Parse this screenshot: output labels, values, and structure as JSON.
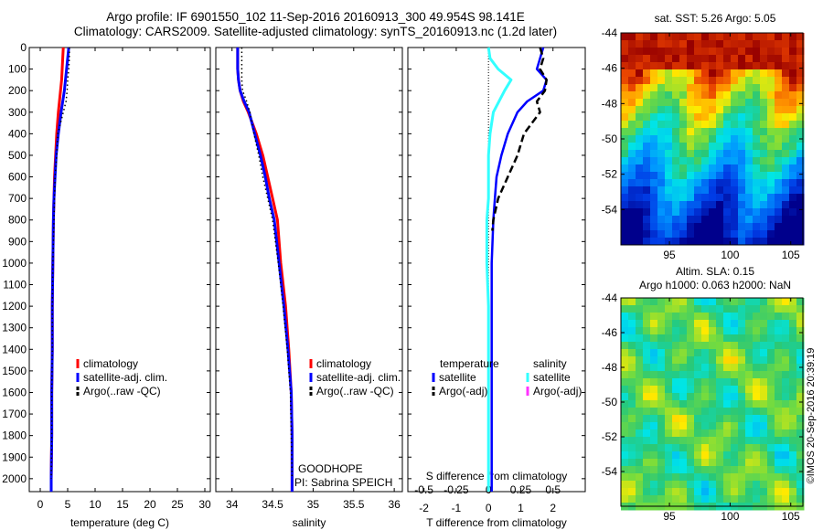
{
  "title_line1": "Argo profile: IF 6901550_102 11-Sep-2016 20160913_300 49.954S 98.141E",
  "title_line2": "Climatology: CARS2009. Satellite-adjusted climatology: synTS_20160913.nc (1.2d later)",
  "colors": {
    "clim": "#ff0000",
    "sat": "#0000ff",
    "argo": "#000000",
    "cyan": "#33ffff",
    "magenta": "#ff33ff"
  },
  "chart_data": [
    {
      "type": "line",
      "panel": "temperature",
      "xlabel": "temperature (deg C)",
      "ylabel": "",
      "xlim": [
        -2,
        31
      ],
      "ylim": [
        2060,
        0
      ],
      "xticks": [
        "0",
        "5",
        "10",
        "15",
        "20",
        "25",
        "30"
      ],
      "yticks": [
        "0",
        "100",
        "200",
        "300",
        "400",
        "500",
        "600",
        "700",
        "800",
        "900",
        "1000",
        "1100",
        "1200",
        "1300",
        "1400",
        "1500",
        "1600",
        "1700",
        "1800",
        "1900",
        "2000"
      ],
      "legend": [
        "climatology",
        "satellite-adj. clim.",
        "Argo(..raw -QC)"
      ],
      "series": [
        {
          "name": "climatology",
          "color": "red",
          "x": [
            4.2,
            4.1,
            4.0,
            3.9,
            3.7,
            3.3,
            3.0,
            2.8,
            2.6,
            2.5,
            2.4,
            2.3,
            2.2,
            2.2,
            2.1,
            2.1,
            2.0,
            2.0
          ],
          "y": [
            0,
            50,
            100,
            150,
            200,
            300,
            400,
            500,
            600,
            700,
            800,
            1000,
            1200,
            1400,
            1600,
            1800,
            2000,
            2060
          ]
        },
        {
          "name": "satellite-adj. clim.",
          "color": "blue",
          "x": [
            5.2,
            5.0,
            4.8,
            4.6,
            4.4,
            3.8,
            3.3,
            2.9,
            2.7,
            2.5,
            2.4,
            2.3,
            2.2,
            2.2,
            2.1,
            2.1,
            2.0,
            2.0
          ],
          "y": [
            0,
            50,
            100,
            150,
            200,
            300,
            400,
            500,
            600,
            700,
            800,
            1000,
            1200,
            1400,
            1600,
            1800,
            2000,
            2060
          ]
        },
        {
          "name": "Argo(..raw -QC)",
          "color": "black",
          "x": [
            5.3,
            5.3,
            5.2,
            5.0,
            4.9,
            4.7,
            4.2,
            3.7,
            3.2,
            3.0,
            2.7,
            2.6,
            2.5,
            2.3,
            2.2,
            2.2,
            2.1,
            2.1,
            2.0
          ],
          "y": [
            0,
            50,
            100,
            150,
            200,
            250,
            300,
            350,
            400,
            500,
            600,
            700,
            800,
            1000,
            1200,
            1400,
            1600,
            1800,
            2000
          ]
        }
      ],
      "annotations": []
    },
    {
      "type": "line",
      "panel": "salinity",
      "xlabel": "salinity",
      "ylabel": "",
      "xlim": [
        33.8,
        36.1
      ],
      "ylim": [
        2060,
        0
      ],
      "xticks": [
        "34",
        "34.5",
        "35",
        "35.5",
        "36"
      ],
      "legend": [
        "climatology",
        "satellite-adj. clim.",
        "Argo(..raw -QC)"
      ],
      "series": [
        {
          "name": "climatology",
          "color": "red",
          "x": [
            34.07,
            34.07,
            34.08,
            34.1,
            34.14,
            34.2,
            34.3,
            34.38,
            34.44,
            34.5,
            34.56,
            34.6,
            34.66,
            34.7,
            34.73,
            34.74,
            34.74,
            34.74
          ],
          "y": [
            0,
            100,
            150,
            200,
            250,
            300,
            400,
            500,
            600,
            700,
            800,
            1000,
            1200,
            1400,
            1600,
            1800,
            2000,
            2060
          ]
        },
        {
          "name": "satellite-adj. clim.",
          "color": "blue",
          "x": [
            34.07,
            34.07,
            34.08,
            34.1,
            34.15,
            34.21,
            34.28,
            34.35,
            34.41,
            34.46,
            34.52,
            34.58,
            34.64,
            34.69,
            34.73,
            34.74,
            34.74,
            34.74
          ],
          "y": [
            0,
            100,
            150,
            200,
            250,
            300,
            400,
            500,
            600,
            700,
            800,
            1000,
            1200,
            1400,
            1600,
            1800,
            2000,
            2060
          ]
        },
        {
          "name": "Argo(..raw -QC)",
          "color": "black",
          "x": [
            34.12,
            34.12,
            34.12,
            34.13,
            34.18,
            34.22,
            34.27,
            34.33,
            34.38,
            34.44,
            34.5,
            34.57,
            34.63,
            34.68,
            34.72,
            34.73,
            34.74
          ],
          "y": [
            0,
            100,
            150,
            200,
            250,
            300,
            400,
            500,
            600,
            700,
            800,
            1000,
            1200,
            1400,
            1600,
            1800,
            2000
          ]
        }
      ],
      "annotations": [
        "GOODHOPE",
        "PI: Sabrina SPEICH"
      ]
    },
    {
      "type": "line",
      "panel": "difference",
      "xlabel": "T difference from climatology",
      "xlabel_top": "S difference from climatology",
      "ylim": [
        2060,
        0
      ],
      "xlim": [
        -2.5,
        3
      ],
      "xticks": [
        "-2",
        "-1",
        "0",
        "1",
        "2"
      ],
      "xticks_s": [
        "-0.5",
        "-0.25",
        "0",
        "0.25",
        "0.5"
      ],
      "legend_temperature_title": "temperature",
      "legend_salinity_title": "salinity",
      "legend_temperature": [
        "satellite",
        "Argo(-adj)"
      ],
      "legend_salinity": [
        "satellite",
        "Argo(-adj)"
      ],
      "series": [
        {
          "name": "temperature satellite",
          "color": "blue",
          "x": [
            1.7,
            1.6,
            1.5,
            1.8,
            1.7,
            1.2,
            0.9,
            0.6,
            0.4,
            0.25,
            0.2,
            0.15,
            0.1,
            0.1,
            0.1,
            0.1,
            0.1,
            0.1
          ],
          "y": [
            0,
            50,
            100,
            150,
            200,
            250,
            300,
            400,
            500,
            600,
            700,
            800,
            1000,
            1200,
            1400,
            1600,
            1800,
            2060
          ]
        },
        {
          "name": "temperature Argo(-adj)",
          "color": "black",
          "x": [
            1.6,
            1.7,
            1.6,
            1.8,
            1.75,
            1.5,
            1.6,
            1.1,
            0.9,
            0.6,
            0.3,
            0.15,
            0.12
          ],
          "y": [
            0,
            50,
            100,
            150,
            200,
            250,
            300,
            400,
            500,
            600,
            700,
            800,
            850
          ]
        },
        {
          "name": "salinity satellite",
          "color": "cyan",
          "x": [
            0.0,
            0.05,
            0.3,
            0.7,
            0.5,
            0.15,
            0.05,
            0.0,
            0.0,
            0.0,
            -0.05,
            -0.05,
            0.0,
            0.0,
            0.0,
            0.0,
            0.0
          ],
          "y": [
            0,
            50,
            100,
            150,
            200,
            300,
            400,
            500,
            600,
            700,
            800,
            1000,
            1200,
            1400,
            1600,
            1800,
            2060
          ]
        }
      ],
      "legend_labels": [
        "satellite",
        "Argo(-adj)",
        "satellite",
        "Argo(-adj)"
      ]
    },
    {
      "type": "heatmap",
      "panel": "sst-map",
      "title": "sat. SST: 5.26 Argo: 5.05",
      "xticks": [
        "95",
        "100",
        "105"
      ],
      "yticks": [
        "-44",
        "-46",
        "-48",
        "-50",
        "-52",
        "-54"
      ]
    },
    {
      "type": "heatmap",
      "panel": "sla-map",
      "title_line1": "Altim. SLA: 0.15",
      "title_line2": "Argo h1000: 0.063 h2000: NaN",
      "xticks": [
        "95",
        "100",
        "105"
      ],
      "yticks": [
        "-44",
        "-46",
        "-48",
        "-50",
        "-52",
        "-54"
      ]
    }
  ],
  "credit": "©IMOS 20-Sep-2016 20:39:19"
}
